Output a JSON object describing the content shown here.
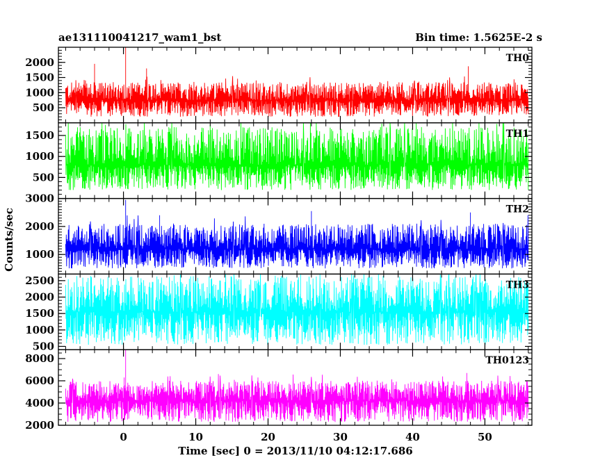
{
  "chart_data": {
    "type": "line",
    "title": "ae131110041217_wam1_bst",
    "subtitle": "Bin time: 1.5625E-2 s",
    "xlabel": "Time [sec] 0 = 2013/11/10 04:12:17.686",
    "ylabel": "Counts/sec",
    "xlim": [
      -9,
      56.5
    ],
    "xticks": [
      0,
      10,
      20,
      30,
      40,
      50
    ],
    "series": [
      {
        "name": "TH0",
        "color": "#ff0000",
        "ylim": [
          0,
          2500
        ],
        "yticks": [
          500,
          1000,
          1500,
          2000
        ],
        "t_start": -8,
        "t_end": 56,
        "baseline": 750,
        "noise_low": 200,
        "noise_high": 1350,
        "spikes": [
          {
            "x": -4,
            "y": 1950
          },
          {
            "x": 0.3,
            "y": 2500
          },
          {
            "x": 47.7,
            "y": 1870
          },
          {
            "x": 3.2,
            "y": 1800
          }
        ]
      },
      {
        "name": "TH1",
        "color": "#00ff00",
        "ylim": [
          0,
          1800
        ],
        "yticks": [
          500,
          1000,
          1500
        ],
        "t_start": -8,
        "t_end": 56,
        "baseline": 800,
        "noise_low": 200,
        "noise_high": 1700,
        "spikes": [
          {
            "x": -2.5,
            "y": 1750
          },
          {
            "x": 12,
            "y": 1760
          },
          {
            "x": 30,
            "y": 1740
          }
        ]
      },
      {
        "name": "TH2",
        "color": "#0000ff",
        "ylim": [
          300,
          3000
        ],
        "yticks": [
          1000,
          2000,
          3000
        ],
        "t_start": -8,
        "t_end": 56,
        "baseline": 1200,
        "noise_low": 500,
        "noise_high": 2100,
        "spikes": [
          {
            "x": 0.3,
            "y": 2950
          },
          {
            "x": 26,
            "y": 2550
          },
          {
            "x": 5,
            "y": 2400
          },
          {
            "x": 48,
            "y": 2500
          }
        ]
      },
      {
        "name": "TH3",
        "color": "#00ffff",
        "ylim": [
          400,
          2700
        ],
        "yticks": [
          500,
          1000,
          1500,
          2000,
          2500
        ],
        "t_start": -8,
        "t_end": 56,
        "baseline": 1550,
        "noise_low": 550,
        "noise_high": 2650,
        "spikes": [
          {
            "x": 24.5,
            "y": 2680
          },
          {
            "x": 7,
            "y": 2660
          }
        ]
      },
      {
        "name": "TH0123",
        "color": "#ff00ff",
        "ylim": [
          2000,
          8800
        ],
        "yticks": [
          2000,
          4000,
          6000,
          8000
        ],
        "t_start": -8,
        "t_end": 56,
        "baseline": 4200,
        "noise_low": 2300,
        "noise_high": 6000,
        "spikes": [
          {
            "x": 0.3,
            "y": 8800
          },
          {
            "x": 0.1,
            "y": 6300
          },
          {
            "x": 47.5,
            "y": 6700
          },
          {
            "x": 18.6,
            "y": 6300
          }
        ]
      }
    ]
  }
}
